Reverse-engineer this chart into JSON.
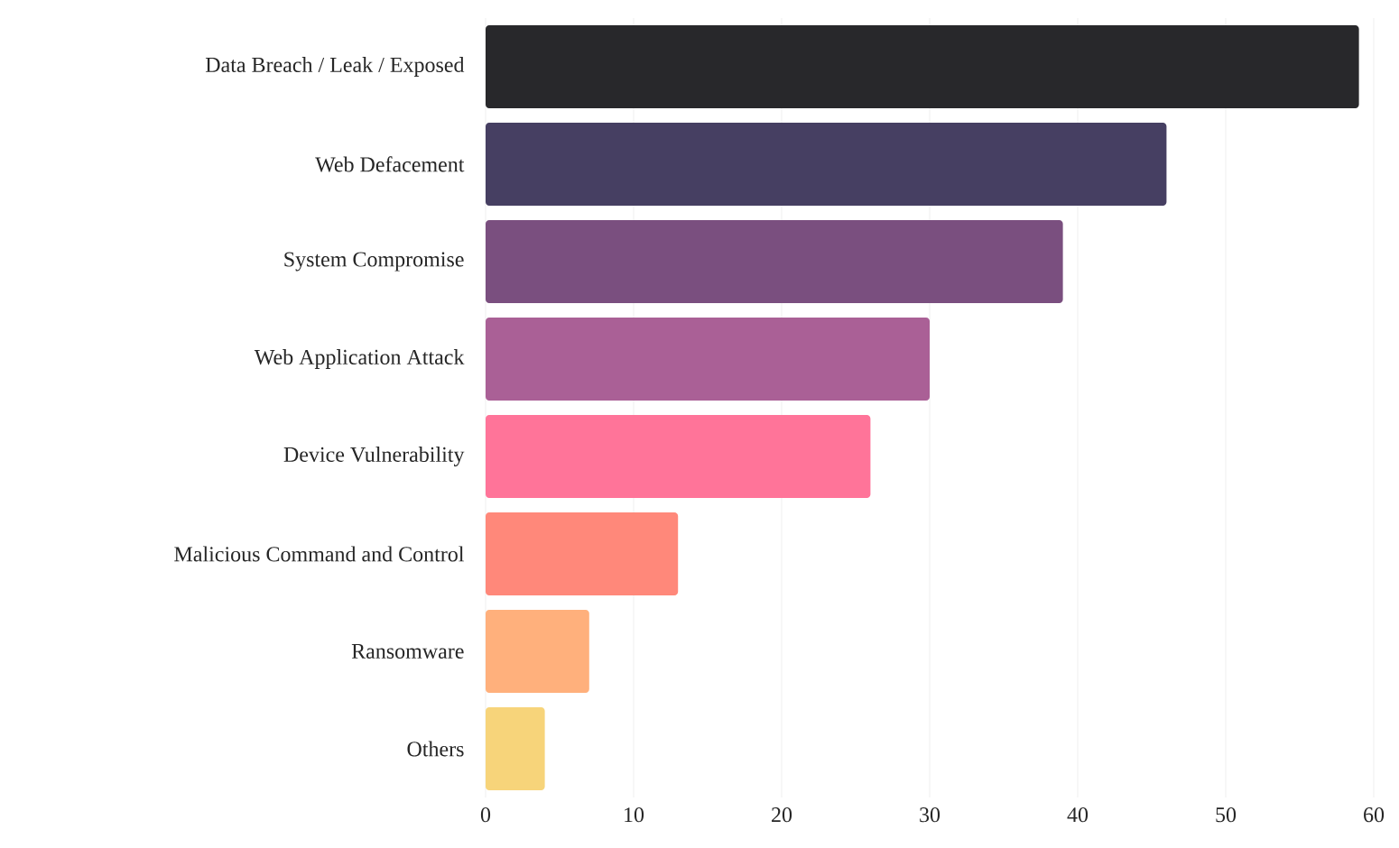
{
  "chart_data": {
    "type": "bar",
    "orientation": "horizontal",
    "categories": [
      "Data Breach / Leak / Exposed",
      "Web Defacement",
      "System Compromise",
      "Web Application Attack",
      "Device Vulnerability",
      "Malicious Command and Control",
      "Ransomware",
      "Others"
    ],
    "values": [
      59,
      46,
      39,
      30,
      26,
      13,
      7,
      4
    ],
    "colors": [
      "#28282b",
      "#463f62",
      "#7a4f7f",
      "#aa6096",
      "#ff7499",
      "#ff887a",
      "#ffb07c",
      "#f7d47a"
    ],
    "xlim": [
      0,
      60
    ],
    "xticks": [
      0,
      10,
      20,
      30,
      40,
      50,
      60
    ],
    "grid": "x"
  }
}
